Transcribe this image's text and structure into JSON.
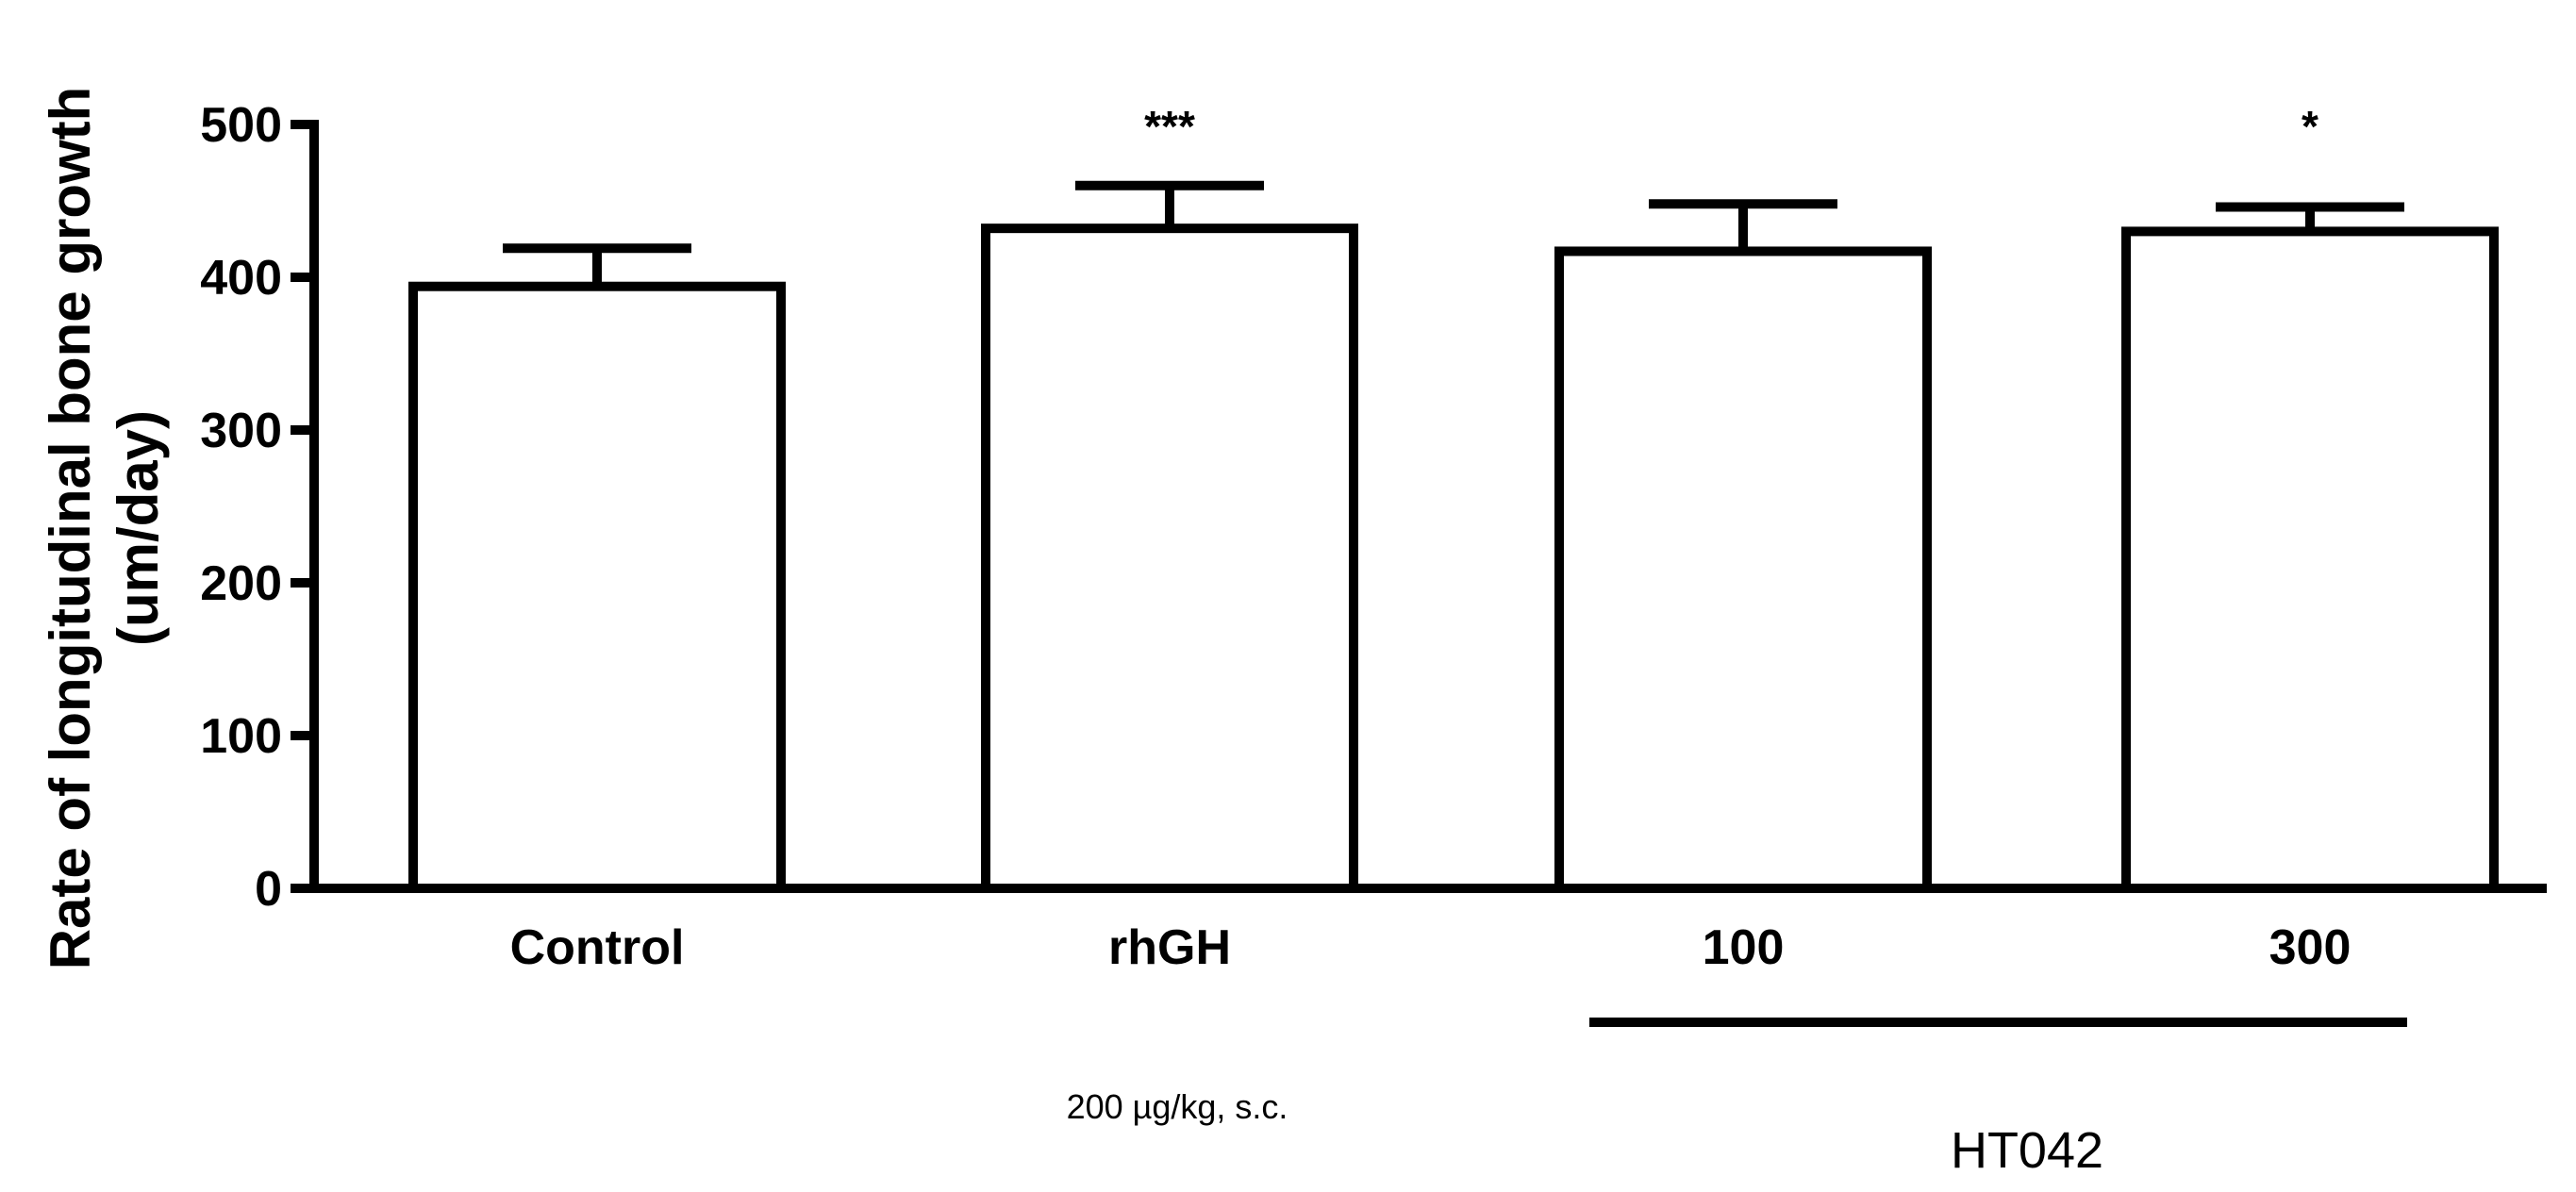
{
  "chart_data": {
    "type": "bar",
    "ylabel_lines": [
      "Rate of longitudinal bone growth",
      "(um/day)"
    ],
    "xlabel": "",
    "ylim": [
      0,
      500
    ],
    "yticks": [
      "0",
      "100",
      "200",
      "300",
      "400",
      "500"
    ],
    "categories": [
      "Control",
      "rhGH",
      "100",
      "300"
    ],
    "values": [
      394,
      432,
      417,
      430
    ],
    "errors": [
      25,
      28,
      31,
      16
    ],
    "significance": [
      "",
      "***",
      "",
      "*"
    ],
    "annotations": {
      "rhgh_dose": "200 µg/kg, s.c.",
      "ht042_group": "HT042"
    },
    "colors": {
      "bar_fill": "#ffffff",
      "stroke": "#000000"
    }
  }
}
